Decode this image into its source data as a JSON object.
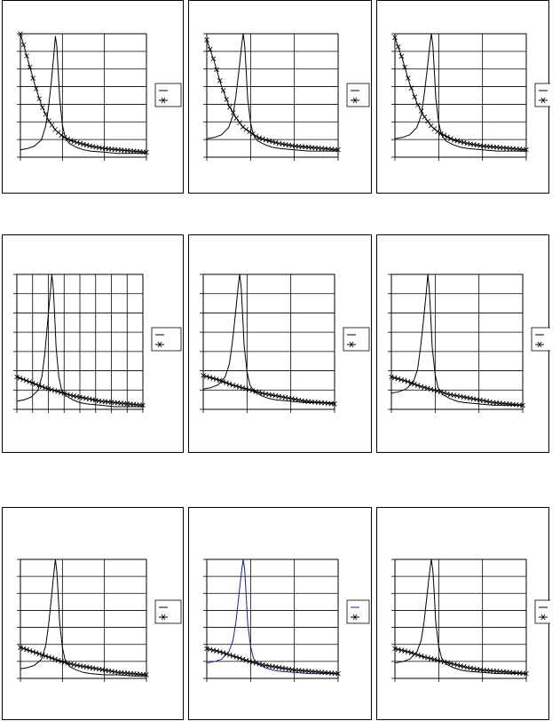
{
  "chart_data": [
    {
      "type": "line",
      "row": 1,
      "col": 1,
      "x_gridlines": 3,
      "y_gridlines": 7,
      "peak_color": "#000000",
      "xlim": [
        0,
        90
      ],
      "ylim": [
        0,
        100
      ],
      "series": [
        {
          "marker": "none",
          "x": [
            0,
            5,
            10,
            15,
            18,
            20,
            22,
            24,
            25,
            26,
            27,
            28,
            30,
            32,
            35,
            40,
            45,
            50,
            60,
            70,
            80,
            90
          ],
          "y": [
            6,
            7,
            9,
            14,
            25,
            40,
            60,
            85,
            98,
            90,
            70,
            48,
            26,
            16,
            11,
            8,
            6,
            5,
            4,
            3,
            3,
            3
          ]
        },
        {
          "marker": "x",
          "x": [
            0,
            5,
            10,
            15,
            20,
            25,
            30,
            35,
            40,
            50,
            60,
            70,
            80,
            90
          ],
          "y": [
            100,
            80,
            60,
            42,
            30,
            22,
            17,
            14,
            12,
            9,
            7,
            6,
            5,
            4
          ]
        }
      ]
    },
    {
      "type": "line",
      "row": 1,
      "col": 2,
      "x_gridlines": 3,
      "y_gridlines": 7,
      "peak_color": "#000000",
      "xlim": [
        0,
        90
      ],
      "ylim": [
        0,
        100
      ],
      "series": [
        {
          "marker": "none",
          "x": [
            0,
            5,
            10,
            15,
            18,
            20,
            22,
            24,
            25,
            26,
            27,
            28,
            30,
            32,
            35,
            40,
            45,
            50,
            60,
            70,
            80,
            90
          ],
          "y": [
            15,
            16,
            18,
            24,
            34,
            50,
            70,
            92,
            100,
            90,
            70,
            48,
            28,
            18,
            13,
            10,
            8,
            7,
            6,
            5,
            5,
            5
          ]
        },
        {
          "marker": "x",
          "x": [
            0,
            5,
            10,
            15,
            20,
            25,
            30,
            35,
            40,
            50,
            60,
            70,
            80,
            90
          ],
          "y": [
            95,
            78,
            58,
            42,
            32,
            24,
            20,
            16,
            14,
            11,
            9,
            8,
            7,
            6
          ]
        }
      ]
    },
    {
      "type": "line",
      "row": 1,
      "col": 3,
      "x_gridlines": 3,
      "y_gridlines": 7,
      "peak_color": "#000000",
      "xlim": [
        0,
        90
      ],
      "ylim": [
        0,
        100
      ],
      "series": [
        {
          "marker": "none",
          "x": [
            0,
            5,
            10,
            15,
            18,
            20,
            22,
            24,
            25,
            26,
            27,
            28,
            30,
            32,
            35,
            40,
            45,
            50,
            60,
            70,
            80,
            90
          ],
          "y": [
            15,
            16,
            18,
            24,
            34,
            50,
            70,
            92,
            100,
            90,
            70,
            48,
            28,
            18,
            13,
            10,
            8,
            7,
            6,
            5,
            5,
            5
          ]
        },
        {
          "marker": "x",
          "x": [
            0,
            5,
            10,
            15,
            20,
            25,
            30,
            35,
            40,
            50,
            60,
            70,
            80,
            90
          ],
          "y": [
            97,
            80,
            60,
            44,
            33,
            25,
            20,
            17,
            14,
            11,
            9,
            8,
            7,
            6
          ]
        }
      ]
    },
    {
      "type": "line",
      "row": 2,
      "col": 1,
      "x_gridlines": 8,
      "y_gridlines": 7,
      "peak_color": "#000000",
      "xlim": [
        0,
        90
      ],
      "ylim": [
        0,
        100
      ],
      "series": [
        {
          "marker": "none",
          "x": [
            0,
            5,
            10,
            15,
            18,
            20,
            22,
            24,
            25,
            26,
            27,
            28,
            30,
            32,
            35,
            40,
            45,
            50,
            60,
            70,
            80,
            90
          ],
          "y": [
            6,
            7,
            9,
            14,
            25,
            42,
            65,
            88,
            100,
            90,
            70,
            46,
            24,
            14,
            10,
            7,
            5,
            4,
            3,
            2,
            2,
            2
          ]
        },
        {
          "marker": "x",
          "x": [
            0,
            10,
            20,
            30,
            40,
            50,
            60,
            70,
            80,
            90
          ],
          "y": [
            24,
            20,
            16,
            13,
            10,
            8,
            6,
            5,
            4,
            3
          ]
        }
      ]
    },
    {
      "type": "line",
      "row": 2,
      "col": 2,
      "x_gridlines": 3,
      "y_gridlines": 7,
      "peak_color": "#000000",
      "xlim": [
        0,
        90
      ],
      "ylim": [
        0,
        100
      ],
      "series": [
        {
          "marker": "none",
          "x": [
            0,
            5,
            10,
            15,
            18,
            20,
            22,
            24,
            25,
            26,
            27,
            28,
            30,
            32,
            35,
            40,
            45,
            50,
            60,
            70,
            80,
            90
          ],
          "y": [
            15,
            16,
            18,
            24,
            34,
            50,
            70,
            92,
            100,
            90,
            70,
            48,
            28,
            18,
            13,
            10,
            8,
            7,
            6,
            5,
            5,
            5
          ]
        },
        {
          "marker": "x",
          "x": [
            0,
            10,
            20,
            30,
            40,
            50,
            60,
            70,
            80,
            90
          ],
          "y": [
            25,
            22,
            18,
            15,
            12,
            10,
            8,
            6,
            5,
            4
          ]
        }
      ]
    },
    {
      "type": "line",
      "row": 2,
      "col": 3,
      "x_gridlines": 3,
      "y_gridlines": 7,
      "peak_color": "#000000",
      "xlim": [
        0,
        90
      ],
      "ylim": [
        0,
        100
      ],
      "series": [
        {
          "marker": "none",
          "x": [
            0,
            5,
            10,
            15,
            18,
            20,
            22,
            24,
            25,
            26,
            27,
            28,
            30,
            32,
            35,
            40,
            45,
            50,
            60,
            70,
            80,
            90
          ],
          "y": [
            12,
            13,
            15,
            20,
            30,
            46,
            66,
            88,
            100,
            88,
            68,
            46,
            26,
            16,
            11,
            8,
            6,
            5,
            4,
            3,
            3,
            3
          ]
        },
        {
          "marker": "x",
          "x": [
            0,
            10,
            20,
            30,
            40,
            50,
            60,
            70,
            80,
            90
          ],
          "y": [
            24,
            21,
            17,
            14,
            11,
            9,
            7,
            5,
            4,
            3
          ]
        }
      ]
    },
    {
      "type": "line",
      "row": 3,
      "col": 1,
      "x_gridlines": 3,
      "y_gridlines": 7,
      "peak_color": "#000000",
      "xlim": [
        0,
        90
      ],
      "ylim": [
        0,
        100
      ],
      "series": [
        {
          "marker": "none",
          "x": [
            0,
            5,
            10,
            15,
            18,
            20,
            22,
            24,
            25,
            26,
            27,
            28,
            30,
            32,
            35,
            40,
            45,
            50,
            60,
            70,
            80,
            90
          ],
          "y": [
            8,
            9,
            11,
            16,
            27,
            44,
            66,
            90,
            100,
            90,
            70,
            47,
            26,
            15,
            10,
            7,
            5,
            4,
            3,
            3,
            2,
            2
          ]
        },
        {
          "marker": "x",
          "x": [
            0,
            10,
            20,
            30,
            40,
            50,
            60,
            70,
            80,
            90
          ],
          "y": [
            26,
            22,
            18,
            14,
            11,
            9,
            7,
            5,
            4,
            3
          ]
        }
      ]
    },
    {
      "type": "line",
      "row": 3,
      "col": 2,
      "x_gridlines": 3,
      "y_gridlines": 7,
      "peak_color": "#1a237e",
      "xlim": [
        0,
        90
      ],
      "ylim": [
        0,
        100
      ],
      "series": [
        {
          "marker": "none",
          "x": [
            0,
            5,
            10,
            15,
            18,
            20,
            22,
            24,
            25,
            26,
            27,
            28,
            30,
            32,
            35,
            40,
            45,
            50,
            60,
            70,
            80,
            90
          ],
          "y": [
            13,
            14,
            16,
            22,
            32,
            48,
            70,
            92,
            100,
            90,
            70,
            47,
            27,
            17,
            12,
            9,
            7,
            6,
            5,
            4,
            4,
            4
          ]
        },
        {
          "marker": "x",
          "x": [
            0,
            10,
            20,
            30,
            40,
            50,
            60,
            70,
            80,
            90
          ],
          "y": [
            25,
            22,
            18,
            14,
            11,
            9,
            7,
            6,
            5,
            4
          ]
        }
      ]
    },
    {
      "type": "line",
      "row": 3,
      "col": 3,
      "x_gridlines": 3,
      "y_gridlines": 7,
      "peak_color": "#000000",
      "xlim": [
        0,
        90
      ],
      "ylim": [
        0,
        100
      ],
      "series": [
        {
          "marker": "none",
          "x": [
            0,
            5,
            10,
            15,
            18,
            20,
            22,
            24,
            25,
            26,
            27,
            28,
            30,
            32,
            35,
            40,
            45,
            50,
            60,
            70,
            80,
            90
          ],
          "y": [
            13,
            14,
            16,
            22,
            32,
            48,
            70,
            92,
            100,
            90,
            70,
            47,
            27,
            17,
            12,
            9,
            7,
            6,
            5,
            4,
            4,
            4
          ]
        },
        {
          "marker": "x",
          "x": [
            0,
            10,
            20,
            30,
            40,
            50,
            60,
            70,
            80,
            90
          ],
          "y": [
            25,
            22,
            18,
            15,
            12,
            9,
            7,
            6,
            5,
            4
          ]
        }
      ]
    }
  ]
}
